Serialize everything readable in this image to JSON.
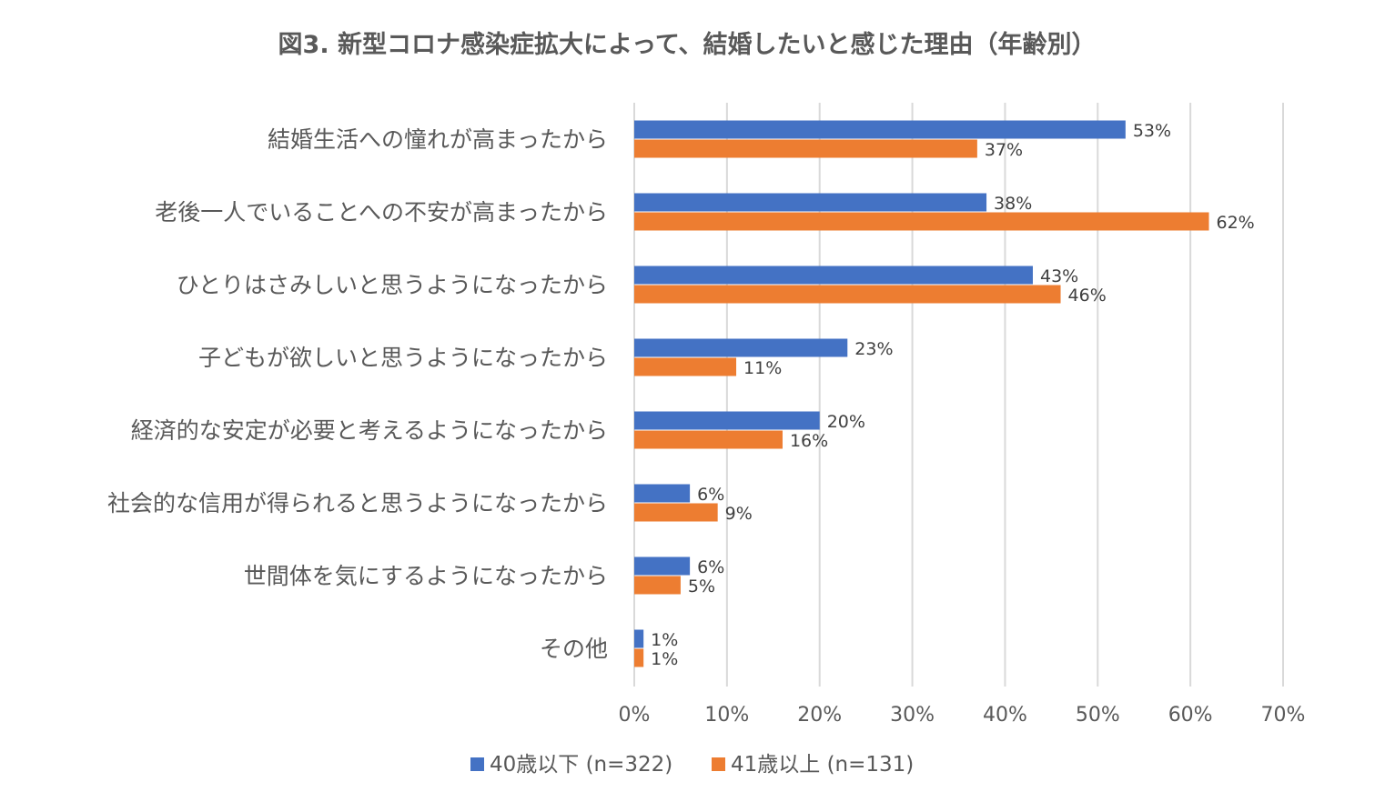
{
  "chart_data": {
    "type": "bar",
    "orientation": "horizontal",
    "title": "図3. 新型コロナ感染症拡大によって、結婚したいと感じた理由（年齢別）",
    "categories": [
      "結婚生活への憧れが高まったから",
      "老後一人でいることへの不安が高まったから",
      "ひとりはさみしいと思うようになったから",
      "子どもが欲しいと思うようになったから",
      "経済的な安定が必要と考えるようになったから",
      "社会的な信用が得られると思うようになったから",
      "世間体を気にするようになったから",
      "その他"
    ],
    "series": [
      {
        "name": "40歳以下 (n=322)",
        "color": "#4472C4",
        "values": [
          53,
          38,
          43,
          23,
          20,
          6,
          6,
          1
        ],
        "labels": [
          "53%",
          "38%",
          "43%",
          "23%",
          "20%",
          "6%",
          "6%",
          "1%"
        ]
      },
      {
        "name": "41歳以上 (n=131)",
        "color": "#ED7D31",
        "values": [
          37,
          62,
          46,
          11,
          16,
          9,
          5,
          1
        ],
        "labels": [
          "37%",
          "62%",
          "46%",
          "11%",
          "16%",
          "9%",
          "5%",
          "1%"
        ]
      }
    ],
    "xlim": [
      0,
      70
    ],
    "xticks": [
      "0%",
      "10%",
      "20%",
      "30%",
      "40%",
      "50%",
      "60%",
      "70%"
    ],
    "xlabel": "",
    "ylabel": "",
    "grid": true,
    "legend_position": "bottom"
  }
}
